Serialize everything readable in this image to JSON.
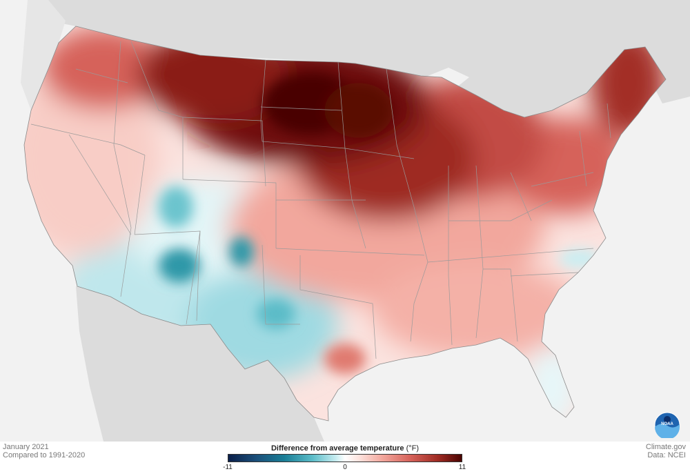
{
  "legend": {
    "title": "Difference from average temperature",
    "unit": "(°F)",
    "ticks": [
      "-11",
      "0",
      "11"
    ],
    "min": -11,
    "max": 11,
    "colors": [
      "#0b1f4a",
      "#1a7e96",
      "#ffffff",
      "#d6625a",
      "#4a0402"
    ]
  },
  "footer": {
    "date": "January 2021",
    "baseline": "Compared to 1991-2020",
    "site": "Climate.gov",
    "source": "Data: NCEI"
  },
  "logo": {
    "icon": "noaa-logo-icon",
    "text": "NOAA"
  },
  "map": {
    "region": "contiguous-united-states",
    "anomaly_regions": [
      {
        "area": "north-central-plains",
        "level": "very-warm",
        "color": "#4a0402"
      },
      {
        "area": "upper-midwest",
        "level": "warm",
        "color": "#9e2a22"
      },
      {
        "area": "northern-new-england",
        "level": "warm",
        "color": "#b23c33"
      },
      {
        "area": "great-lakes-northeast",
        "level": "moderately-warm",
        "color": "#d6625a"
      },
      {
        "area": "southeast-gulf",
        "level": "slightly-warm",
        "color": "#f2a79d"
      },
      {
        "area": "west-coast",
        "level": "slightly-warm",
        "color": "#f6bdb4"
      },
      {
        "area": "southwest-arizona-new-mexico",
        "level": "slightly-cool",
        "color": "#8fd3dc"
      },
      {
        "area": "west-texas",
        "level": "slightly-cool",
        "color": "#5bbcc8"
      },
      {
        "area": "florida",
        "level": "near-average",
        "color": "#e6f7f9"
      }
    ]
  }
}
